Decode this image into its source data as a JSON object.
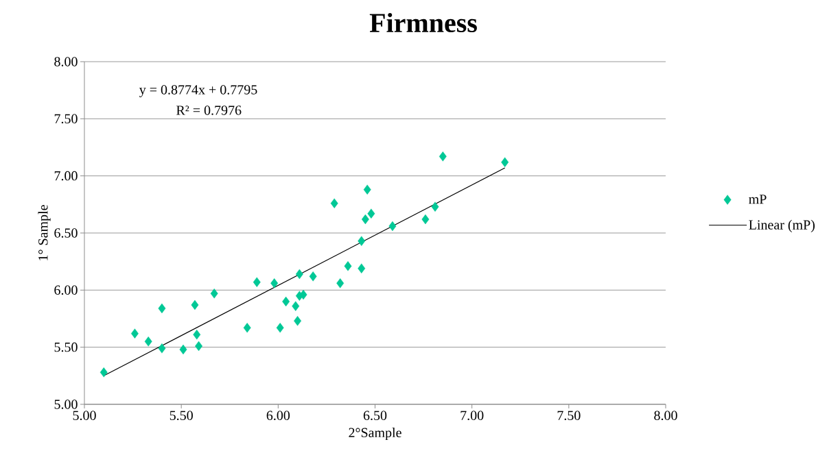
{
  "chart_data": {
    "type": "scatter",
    "title": "Firmness",
    "xlabel": "2°Sample",
    "ylabel": "1° Sample",
    "annotations": [
      "y = 0.8774x + 0.7795",
      "R² = 0.7976"
    ],
    "series": [
      {
        "name": "mP",
        "color": "#00c896",
        "marker": "diamond",
        "x": [
          5.1,
          5.26,
          5.33,
          5.4,
          5.4,
          5.51,
          5.57,
          5.58,
          5.59,
          5.67,
          5.84,
          5.89,
          5.98,
          6.01,
          6.04,
          6.09,
          6.1,
          6.11,
          6.13,
          6.11,
          6.18,
          6.29,
          6.32,
          6.36,
          6.43,
          6.43,
          6.45,
          6.46,
          6.48,
          6.59,
          6.76,
          6.81,
          6.85,
          7.17
        ],
        "values": [
          5.28,
          5.62,
          5.55,
          5.84,
          5.49,
          5.48,
          5.87,
          5.61,
          5.51,
          5.97,
          5.67,
          6.07,
          6.06,
          5.67,
          5.9,
          5.86,
          5.73,
          5.95,
          5.96,
          6.14,
          6.12,
          6.76,
          6.06,
          6.21,
          6.43,
          6.19,
          6.62,
          6.88,
          6.67,
          6.56,
          6.62,
          6.73,
          7.17,
          7.12
        ]
      },
      {
        "name": "Linear (mP)",
        "type": "line",
        "color": "#000000",
        "marker": "none",
        "line_style": "solid",
        "x": [
          5.1,
          7.17
        ],
        "values": [
          5.25,
          7.07
        ]
      }
    ],
    "xlim": [
      5,
      8
    ],
    "ylim": [
      5,
      8
    ],
    "xticks": [
      {
        "value": 5,
        "label": "5.00"
      },
      {
        "value": 5.5,
        "label": "5.50"
      },
      {
        "value": 6,
        "label": "6.00"
      },
      {
        "value": 6.5,
        "label": "6.50"
      },
      {
        "value": 7,
        "label": "7.00"
      },
      {
        "value": 7.5,
        "label": "7.50"
      },
      {
        "value": 8,
        "label": "8.00"
      }
    ],
    "yticks": [
      {
        "value": 5,
        "label": "5.00"
      },
      {
        "value": 5.5,
        "label": "5.50"
      },
      {
        "value": 6,
        "label": "6.00"
      },
      {
        "value": 6.5,
        "label": "6.50"
      },
      {
        "value": 7,
        "label": "7.00"
      },
      {
        "value": 7.5,
        "label": "7.50"
      },
      {
        "value": 8,
        "label": "8.00"
      }
    ],
    "grid": "y",
    "legend": "right"
  }
}
